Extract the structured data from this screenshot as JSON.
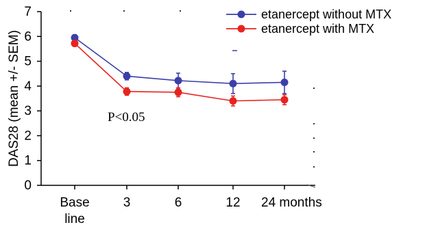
{
  "chart_data": {
    "type": "line",
    "ylabel": "DAS28 (mean +/- SEM)",
    "ylim": [
      0,
      7
    ],
    "yticks": [
      0,
      1,
      2,
      3,
      4,
      5,
      6,
      7
    ],
    "categories": [
      "Base line",
      "3",
      "6",
      "12",
      "24 months"
    ],
    "category_lines": [
      [
        "Base",
        "line"
      ],
      [
        "3"
      ],
      [
        "6"
      ],
      [
        "12"
      ],
      [
        "24 months"
      ]
    ],
    "series": [
      {
        "name": "etanercept without MTX",
        "color": "#3c3fa8",
        "values": [
          5.95,
          4.4,
          4.22,
          4.1,
          4.15
        ],
        "error": [
          0.12,
          0.15,
          0.3,
          0.4,
          0.45
        ]
      },
      {
        "name": "etanercept with MTX",
        "color": "#e8231f",
        "values": [
          5.72,
          3.78,
          3.75,
          3.4,
          3.45
        ],
        "error": [
          0.12,
          0.15,
          0.18,
          0.2,
          0.2
        ]
      }
    ],
    "legend_position": "top-right",
    "annotations": [
      "P<0.05"
    ]
  }
}
